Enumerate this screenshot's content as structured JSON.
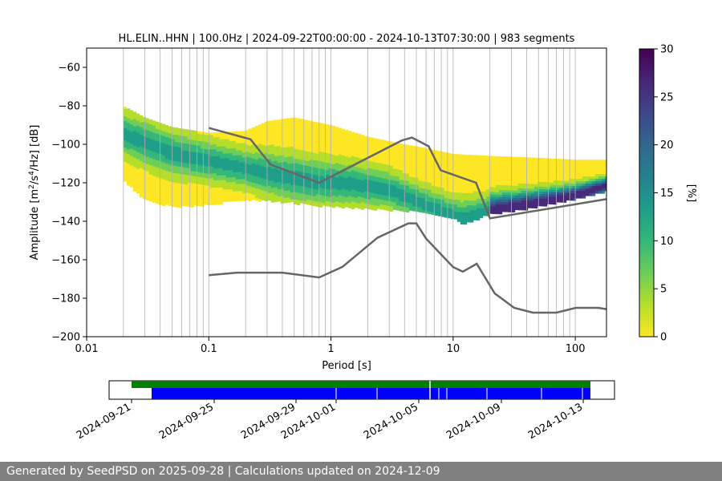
{
  "chart_data": [
    {
      "type": "heatmap",
      "title": "HL.ELIN..HHN | 100.0Hz | 2024-09-22T00:00:00 - 2024-10-13T07:30:00 | 983 segments",
      "xlabel": "Period [s]",
      "ylabel_main": "Amplitude [m",
      "ylabel_sup1": "2",
      "ylabel_mid": "/s",
      "ylabel_sup2": "4",
      "ylabel_end": "/Hz] [dB]",
      "x_scale": "log",
      "xlim": [
        0.01,
        180
      ],
      "ylim": [
        -200,
        -50
      ],
      "x_ticks": [
        0.01,
        0.1,
        1,
        10,
        100
      ],
      "x_tick_labels": [
        "0.01",
        "0.1",
        "1",
        "10",
        "100"
      ],
      "y_ticks": [
        -60,
        -80,
        -100,
        -120,
        -140,
        -160,
        -180,
        -200
      ],
      "y_tick_labels": [
        "−60",
        "−80",
        "−100",
        "−120",
        "−140",
        "−160",
        "−180",
        "−200"
      ],
      "grid": "vertical lines at log decade subdivisions",
      "colormap": "viridis_r",
      "colorbar": {
        "label": "[%]",
        "range": [
          0,
          30
        ],
        "ticks": [
          0,
          5,
          10,
          15,
          20,
          25,
          30
        ],
        "tick_labels": [
          "0",
          "5",
          "10",
          "15",
          "20",
          "25",
          "30"
        ],
        "colors": [
          "#fde725",
          "#b5de2b",
          "#6ece58",
          "#35b779",
          "#1f9e89",
          "#26828e",
          "#31688e",
          "#3e4989",
          "#482878",
          "#440154"
        ]
      },
      "mode_line": {
        "period": [
          0.02,
          0.05,
          0.1,
          0.2,
          0.4,
          0.8,
          1.5,
          3,
          5,
          8,
          12,
          20,
          50,
          100,
          180
        ],
        "value": [
          -94,
          -104,
          -108,
          -112,
          -116,
          -119,
          -120,
          -123,
          -129,
          -134,
          -138,
          -134,
          -130,
          -126,
          -121
        ]
      },
      "band_upper": {
        "period": [
          0.02,
          0.03,
          0.05,
          0.1,
          0.2,
          0.3,
          0.5,
          1,
          2,
          4,
          6,
          10,
          20,
          50,
          100,
          180
        ],
        "value": [
          -80,
          -86,
          -91,
          -94,
          -93,
          -88,
          -86,
          -90,
          -96,
          -100,
          -102,
          -105,
          -106,
          -107,
          -108,
          -108
        ]
      },
      "band_lower": {
        "period": [
          0.02,
          0.03,
          0.05,
          0.1,
          0.2,
          0.5,
          1,
          2,
          4,
          6,
          10,
          12,
          20,
          50,
          100,
          180
        ],
        "value": [
          -118,
          -128,
          -132,
          -131,
          -128,
          -130,
          -132,
          -133,
          -134,
          -135,
          -138,
          -141,
          -136,
          -132,
          -128,
          -124
        ]
      },
      "noise_model_high": {
        "period": [
          0.1,
          0.22,
          0.32,
          0.8,
          3.8,
          4.6,
          6.3,
          7.9,
          15.4,
          20,
          180
        ],
        "value": [
          -91.5,
          -97.4,
          -110.5,
          -120,
          -98,
          -96.5,
          -101,
          -113.5,
          -120,
          -138.5,
          -128.5
        ]
      },
      "noise_model_low": {
        "period": [
          0.1,
          0.17,
          0.4,
          0.8,
          1.24,
          2.4,
          4.3,
          5,
          6,
          10,
          12,
          15.6,
          21.9,
          31.6,
          45,
          70,
          101,
          154,
          180
        ],
        "value": [
          -168,
          -166.7,
          -166.7,
          -169.2,
          -163.7,
          -148.6,
          -141.1,
          -141.1,
          -149,
          -163.8,
          -166.2,
          -162.1,
          -177.5,
          -185,
          -187.5,
          -187.5,
          -185,
          -185,
          -185.7
        ]
      },
      "line_color": "#666666"
    },
    {
      "type": "timeline",
      "x_tick_labels": [
        "2024-09-21",
        "2024-09-25",
        "2024-09-29",
        "2024-10-01",
        "2024-10-05",
        "2024-10-09",
        "2024-10-13"
      ],
      "data_availability": {
        "start": "2024-09-21",
        "end": "2024-10-13T07:30:00",
        "color": "#008000"
      },
      "processed_segments": {
        "start": "2024-09-22",
        "end": "2024-10-13T07:30:00",
        "color": "#0000ff"
      }
    }
  ],
  "footer": {
    "text": "Generated by SeedPSD on 2025-09-28 | Calculations updated on 2024-12-09"
  }
}
